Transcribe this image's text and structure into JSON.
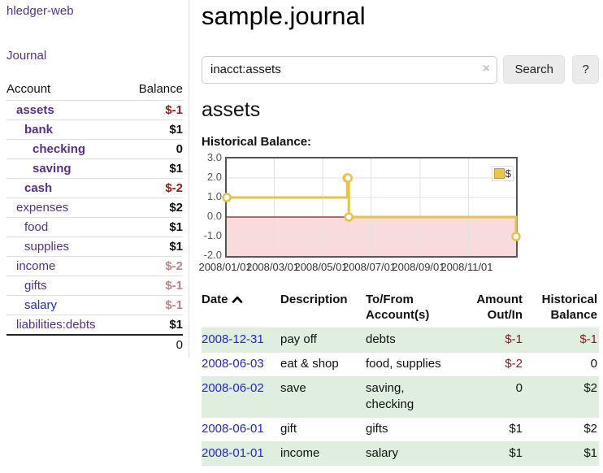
{
  "app": {
    "title": "hledger-web"
  },
  "nav": {
    "journal": "Journal"
  },
  "sidebar": {
    "header": {
      "account": "Account",
      "balance": "Balance"
    },
    "accounts": [
      {
        "name": "assets",
        "balance": "$-1"
      },
      {
        "name": "bank",
        "balance": "$1"
      },
      {
        "name": "checking",
        "balance": "0"
      },
      {
        "name": "saving",
        "balance": "$1"
      },
      {
        "name": "cash",
        "balance": "$-2"
      },
      {
        "name": "expenses",
        "balance": "$2"
      },
      {
        "name": "food",
        "balance": "$1"
      },
      {
        "name": "supplies",
        "balance": "$1"
      },
      {
        "name": "income",
        "balance": "$-2"
      },
      {
        "name": "gifts",
        "balance": "$-1"
      },
      {
        "name": "salary",
        "balance": "$-1"
      },
      {
        "name": "liabilities:debts",
        "balance": "$1"
      }
    ],
    "total": "0"
  },
  "header": {
    "title": "sample.journal"
  },
  "search": {
    "value": "inacct:assets",
    "clear_icon": "×",
    "button": "Search",
    "help_button": "?"
  },
  "register": {
    "heading": "assets",
    "chart_title": "Historical Balance:"
  },
  "chart_data": {
    "type": "line",
    "step": "after",
    "series": [
      {
        "name": "$",
        "points": [
          [
            "2008-01-01",
            1
          ],
          [
            "2008-06-01",
            2
          ],
          [
            "2008-06-02",
            2
          ],
          [
            "2008-06-03",
            0
          ],
          [
            "2008-12-31",
            -1
          ]
        ]
      }
    ],
    "x_range": [
      "2008-01-01",
      "2008-12-31"
    ],
    "x_ticks": [
      "2008/01/01",
      "2008/03/01",
      "2008/05/01",
      "2008/07/01",
      "2008/09/01",
      "2008/11/01"
    ],
    "y_ticks": [
      3.0,
      2.0,
      1.0,
      0.0,
      -1.0,
      -2.0
    ],
    "ylim": [
      -2,
      3
    ],
    "legend": "$",
    "legend_position": "top-right",
    "grid": true,
    "negative_region_highlighted": true,
    "colors": {
      "series": "#e7c24a",
      "negative_fill": "#fadbdb",
      "zero_line": "#8f1a1a"
    }
  },
  "table": {
    "headers": {
      "date": "Date",
      "sort_icon": "chevron-up",
      "description": "Description",
      "tofrom": [
        "To/From",
        "Account(s)"
      ],
      "amount": [
        "Amount",
        "Out/In"
      ],
      "balance": [
        "Historical",
        "Balance"
      ]
    },
    "rows": [
      {
        "date": "2008-12-31",
        "description": "pay off",
        "accounts": "debts",
        "amount": "$-1",
        "balance": "$-1"
      },
      {
        "date": "2008-06-03",
        "description": "eat & shop",
        "accounts": "food, supplies",
        "amount": "$-2",
        "balance": "0"
      },
      {
        "date": "2008-06-02",
        "description": "save",
        "accounts": "saving, checking",
        "amount": "0",
        "balance": "$2"
      },
      {
        "date": "2008-06-01",
        "description": "gift",
        "accounts": "gifts",
        "amount": "$1",
        "balance": "$2"
      },
      {
        "date": "2008-01-01",
        "description": "income",
        "accounts": "salary",
        "amount": "$1",
        "balance": "$1"
      }
    ]
  },
  "colors": {
    "link_purple": "#55308d",
    "link_blue": "#2424d8",
    "negative_strong": "#a31515",
    "negative_soft": "#c67f7f",
    "negative_table": "#8b1a1a",
    "row_stripe_green": "#e0eedf",
    "chart_gold": "#e7c24a"
  }
}
